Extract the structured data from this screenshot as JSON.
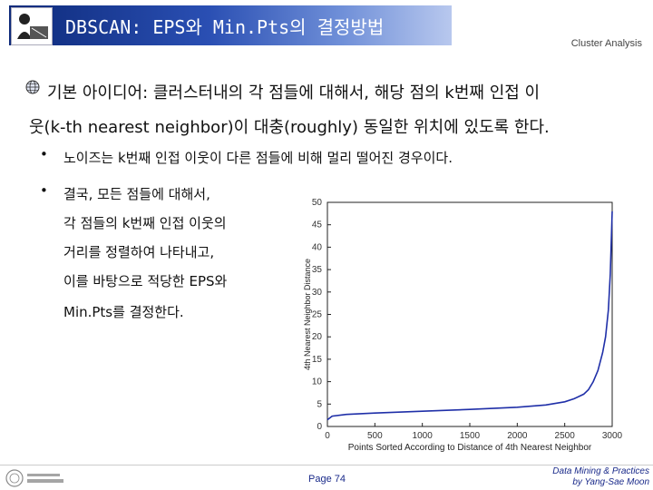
{
  "header": {
    "title": "DBSCAN: EPS와 Min.Pts의 결정방법",
    "subject": "Cluster Analysis"
  },
  "body": {
    "main_line1": "기본 아이디어: 클러스터내의 각 점들에 대해서, 해당 점의 k번째 인접 이",
    "main_line2": "웃(k-th nearest neighbor)이 대충(roughly) 동일한 위치에 있도록 한다.",
    "sub1": "노이즈는 k번째 인접 이웃이 다른 점들에 비해 멀리 떨어진 경우이다.",
    "sub2_lines": [
      "결국, 모든 점들에 대해서,",
      "각 점들의 k번째 인접 이웃의",
      "거리를 정렬하여 나타내고,",
      "이를 바탕으로 적당한 EPS와",
      "Min.Pts를 결정한다."
    ],
    "bullet": "•"
  },
  "chart_data": {
    "type": "line",
    "xlabel": "Points Sorted According to Distance of 4th Nearest Neighbor",
    "ylabel": "4th Nearest Neighbor Distance",
    "xlim": [
      0,
      3000
    ],
    "ylim": [
      0,
      50
    ],
    "xticks": [
      0,
      500,
      1000,
      1500,
      2000,
      2500,
      3000
    ],
    "yticks": [
      0,
      5,
      10,
      15,
      20,
      25,
      30,
      35,
      40,
      45,
      50
    ],
    "grid": false,
    "line_color": "#1f2fa8",
    "series": [
      {
        "x": [
          0,
          50,
          200,
          500,
          1000,
          1500,
          2000,
          2300,
          2500,
          2600,
          2700,
          2750,
          2800,
          2850,
          2900,
          2930,
          2960,
          2980,
          3000
        ],
        "y": [
          1.5,
          2.3,
          2.7,
          3.0,
          3.4,
          3.8,
          4.3,
          4.8,
          5.5,
          6.2,
          7.2,
          8.2,
          10.0,
          12.5,
          16.5,
          20.0,
          26.0,
          34.0,
          48.0
        ]
      }
    ]
  },
  "footer": {
    "page": "Page 74",
    "credit_line1": "Data Mining & Practices",
    "credit_line2": "by Yang-Sae Moon"
  }
}
